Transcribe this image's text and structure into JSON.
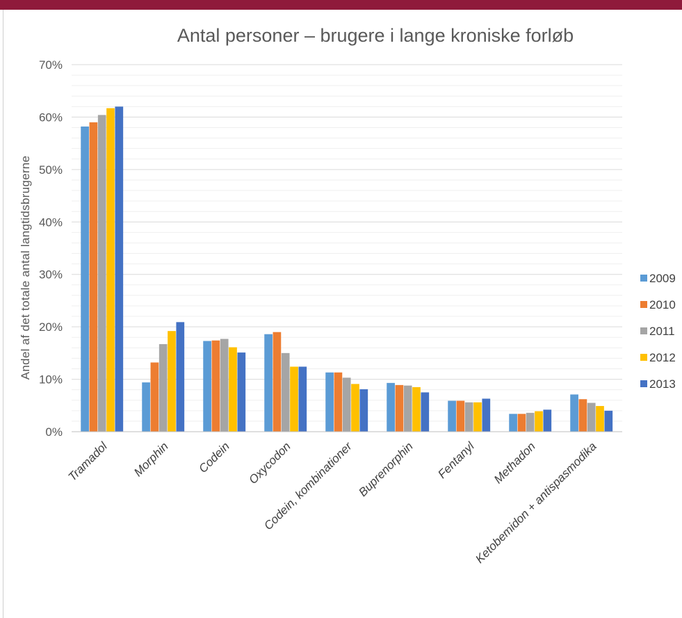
{
  "chart_data": {
    "type": "bar",
    "title": "Antal personer – brugere i lange kroniske forløb",
    "xlabel": "",
    "ylabel": "Andel af det totale antal langtidsbrugerne",
    "ylim": [
      0,
      70
    ],
    "y_tick_step": 10,
    "y_tick_format": "percent",
    "grid": true,
    "legend_position": "right",
    "categories": [
      "Tramadol",
      "Morphin",
      "Codein",
      "Oxycodon",
      "Codein, kombinationer",
      "Buprenorphin",
      "Fentanyl",
      "Methadon",
      "Ketobemidon + antispasmodika"
    ],
    "series": [
      {
        "name": "2009",
        "color": "#5b9bd5",
        "values": [
          58.2,
          9.4,
          17.3,
          18.6,
          11.3,
          9.3,
          5.9,
          3.4,
          7.1
        ]
      },
      {
        "name": "2010",
        "color": "#ed7d31",
        "values": [
          59.0,
          13.2,
          17.4,
          19.0,
          11.3,
          8.9,
          5.9,
          3.4,
          6.2
        ]
      },
      {
        "name": "2011",
        "color": "#a5a5a5",
        "values": [
          60.4,
          16.7,
          17.7,
          15.0,
          10.3,
          8.8,
          5.6,
          3.6,
          5.5
        ]
      },
      {
        "name": "2012",
        "color": "#ffc000",
        "values": [
          61.7,
          19.2,
          16.1,
          12.4,
          9.1,
          8.5,
          5.6,
          3.9,
          4.9
        ]
      },
      {
        "name": "2013",
        "color": "#4472c4",
        "values": [
          62.0,
          20.9,
          15.1,
          12.4,
          8.1,
          7.5,
          6.3,
          4.2,
          4.0
        ]
      }
    ]
  }
}
